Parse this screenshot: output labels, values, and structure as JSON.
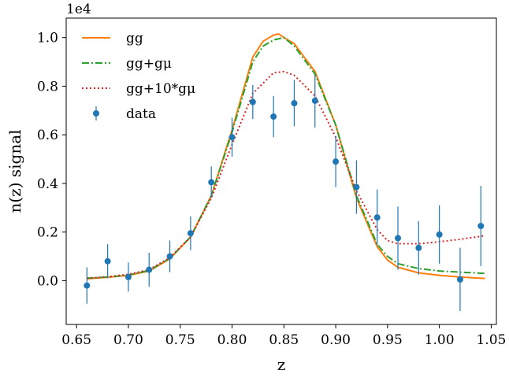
{
  "chart_data": {
    "type": "line",
    "xlabel": "z",
    "ylabel": "n(z) signal",
    "y_offset_label": "1e4",
    "xlim": [
      0.64,
      1.055
    ],
    "ylim": [
      -0.18,
      1.08
    ],
    "x_ticks": [
      0.65,
      0.7,
      0.75,
      0.8,
      0.85,
      0.9,
      0.95,
      1.0,
      1.05
    ],
    "x_tick_labels": [
      "0.65",
      "0.70",
      "0.75",
      "0.80",
      "0.85",
      "0.90",
      "0.95",
      "1.00",
      "1.05"
    ],
    "y_ticks": [
      0.0,
      0.2,
      0.4,
      0.6,
      0.8,
      1.0
    ],
    "y_tick_labels": [
      "0.0",
      "0.2",
      "0.4",
      "0.6",
      "0.8",
      "1.0"
    ],
    "grid": false,
    "legend_position": "top-left",
    "series": [
      {
        "name": "gg",
        "kind": "line",
        "style": "solid",
        "color": "#ff7f0e",
        "x": [
          0.66,
          0.68,
          0.7,
          0.72,
          0.74,
          0.76,
          0.78,
          0.8,
          0.82,
          0.83,
          0.84,
          0.845,
          0.85,
          0.86,
          0.88,
          0.9,
          0.92,
          0.94,
          0.95,
          0.96,
          0.98,
          1.0,
          1.02,
          1.044
        ],
        "y": [
          0.008,
          0.014,
          0.022,
          0.04,
          0.09,
          0.18,
          0.35,
          0.62,
          0.92,
          0.985,
          1.01,
          1.015,
          1.0,
          0.975,
          0.86,
          0.64,
          0.34,
          0.14,
          0.085,
          0.055,
          0.032,
          0.022,
          0.015,
          0.009
        ]
      },
      {
        "name": "gg+gμ",
        "kind": "line",
        "style": "dashdot",
        "color": "#2ca02c",
        "x": [
          0.66,
          0.68,
          0.7,
          0.72,
          0.74,
          0.76,
          0.78,
          0.8,
          0.82,
          0.83,
          0.84,
          0.85,
          0.86,
          0.88,
          0.9,
          0.92,
          0.94,
          0.95,
          0.96,
          0.98,
          1.0,
          1.02,
          1.044
        ],
        "y": [
          0.01,
          0.015,
          0.023,
          0.042,
          0.092,
          0.18,
          0.35,
          0.61,
          0.9,
          0.965,
          0.99,
          1.0,
          0.965,
          0.85,
          0.64,
          0.35,
          0.15,
          0.1,
          0.07,
          0.05,
          0.04,
          0.035,
          0.03
        ]
      },
      {
        "name": "gg+10*gμ",
        "kind": "line",
        "style": "dotted",
        "color": "#d62728",
        "x": [
          0.66,
          0.68,
          0.7,
          0.72,
          0.74,
          0.76,
          0.78,
          0.8,
          0.82,
          0.84,
          0.85,
          0.86,
          0.88,
          0.9,
          0.92,
          0.94,
          0.95,
          0.96,
          0.98,
          1.0,
          1.02,
          1.044
        ],
        "y": [
          0.01,
          0.016,
          0.026,
          0.045,
          0.095,
          0.18,
          0.34,
          0.56,
          0.77,
          0.855,
          0.86,
          0.845,
          0.76,
          0.59,
          0.37,
          0.21,
          0.165,
          0.152,
          0.152,
          0.16,
          0.17,
          0.185
        ]
      },
      {
        "name": "data",
        "kind": "errorbar",
        "color": "#1f77b4",
        "x": [
          0.66,
          0.68,
          0.7,
          0.72,
          0.74,
          0.76,
          0.78,
          0.8,
          0.82,
          0.84,
          0.86,
          0.88,
          0.9,
          0.92,
          0.94,
          0.96,
          0.98,
          1.0,
          1.02,
          1.04
        ],
        "y": [
          -0.02,
          0.08,
          0.015,
          0.045,
          0.1,
          0.195,
          0.405,
          0.59,
          0.735,
          0.675,
          0.73,
          0.74,
          0.49,
          0.385,
          0.26,
          0.175,
          0.135,
          0.19,
          0.005,
          0.225
        ],
        "yerr": [
          0.075,
          0.07,
          0.06,
          0.07,
          0.065,
          0.07,
          0.065,
          0.08,
          0.07,
          0.085,
          0.095,
          0.11,
          0.105,
          0.11,
          0.115,
          0.13,
          0.11,
          0.12,
          0.13,
          0.165
        ]
      }
    ]
  }
}
